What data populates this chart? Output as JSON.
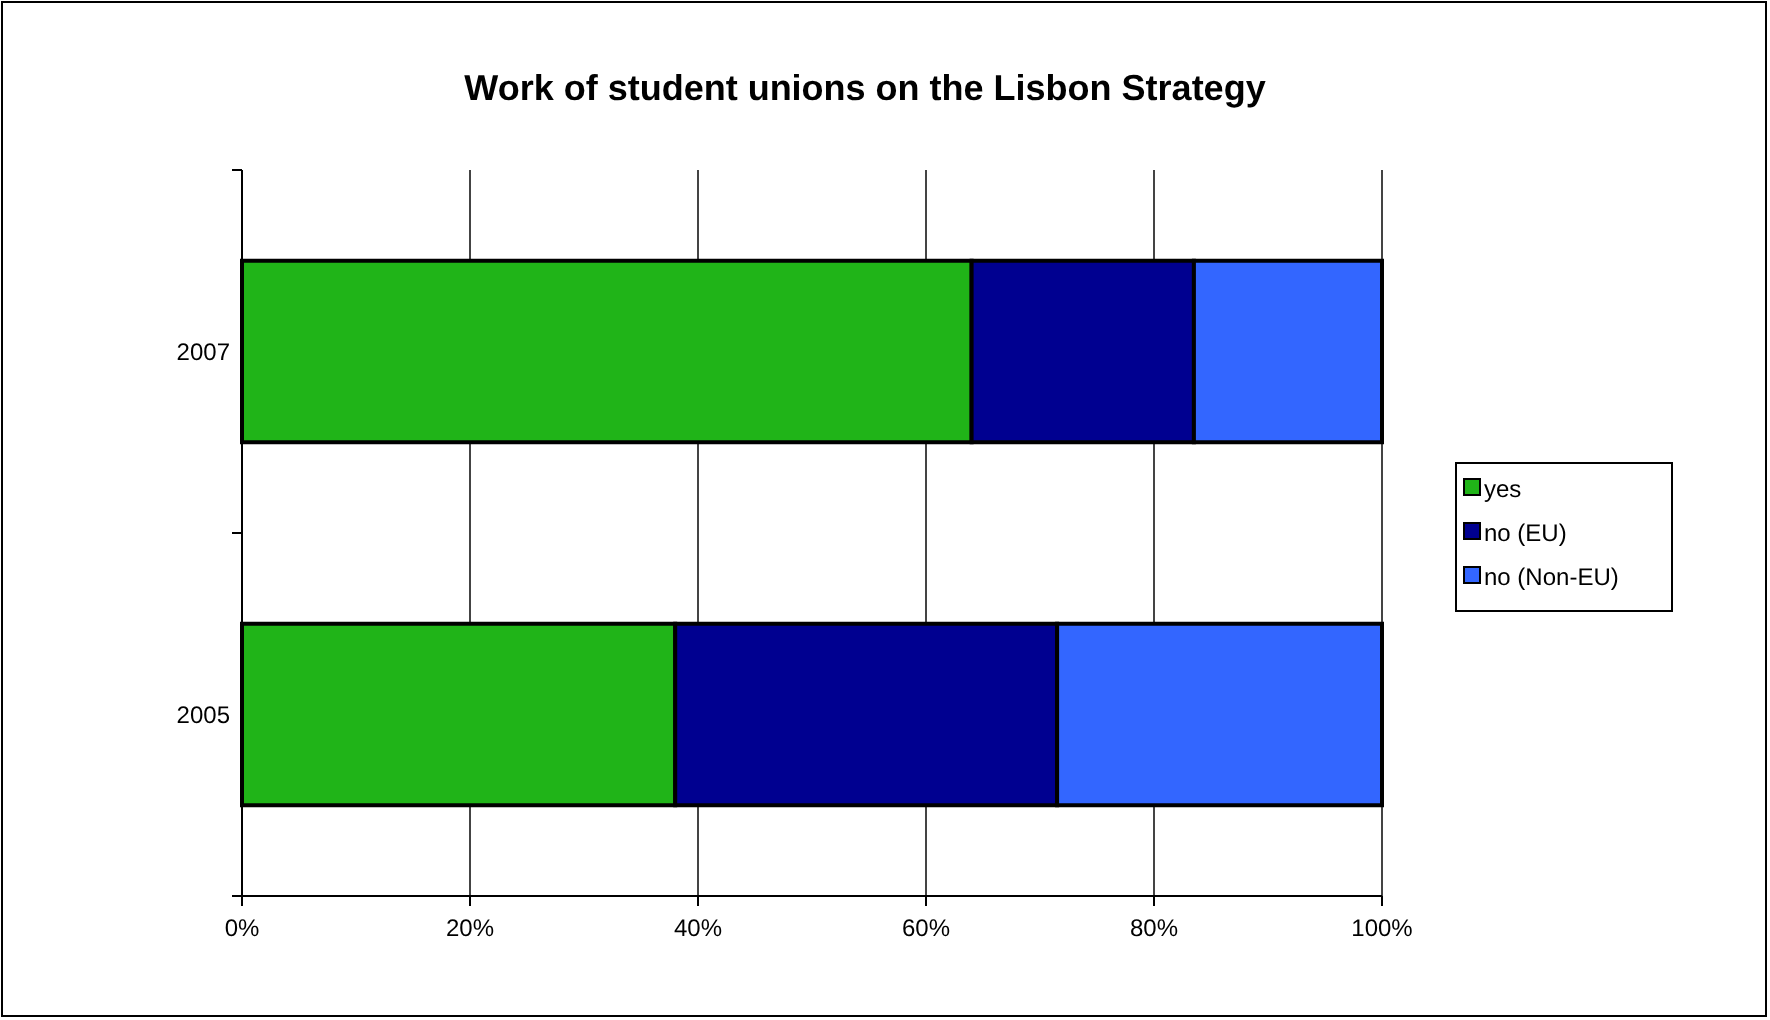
{
  "chart_data": {
    "type": "bar",
    "orientation": "horizontal",
    "stacked": true,
    "title": "Work of student unions on the Lisbon Strategy",
    "categories": [
      "2007",
      "2005"
    ],
    "series": [
      {
        "name": "yes",
        "color": "#20b418",
        "values": [
          64,
          38
        ]
      },
      {
        "name": "no (EU)",
        "color": "#000090",
        "values": [
          19.5,
          33.5
        ]
      },
      {
        "name": "no (Non-EU)",
        "color": "#3366ff",
        "values": [
          16.5,
          28.5
        ]
      }
    ],
    "xlim": [
      0,
      100
    ],
    "xticks": [
      {
        "value": 0,
        "label": "0%"
      },
      {
        "value": 20,
        "label": "20%"
      },
      {
        "value": 40,
        "label": "40%"
      },
      {
        "value": 60,
        "label": "60%"
      },
      {
        "value": 80,
        "label": "80%"
      },
      {
        "value": 100,
        "label": "100%"
      }
    ],
    "grid": "x",
    "legend": "right"
  }
}
